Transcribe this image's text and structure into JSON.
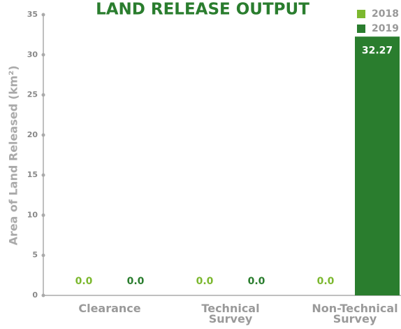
{
  "chart_data": {
    "type": "bar",
    "title": "LAND RELEASE OUTPUT",
    "y_label": "Area of Land Released (km²)",
    "categories": [
      "Clearance",
      "Technical Survey",
      "Non-Technical Survey"
    ],
    "series": [
      {
        "name": "2018",
        "color": "#7cb82f",
        "values": [
          0,
          0,
          0
        ],
        "value_labels": [
          "0.0",
          "0.0",
          "0.0"
        ]
      },
      {
        "name": "2019",
        "color": "#2a7d2e",
        "values": [
          0,
          0,
          32.27
        ],
        "value_labels": [
          "0.0",
          "0.0",
          "32.27"
        ]
      }
    ],
    "ylim": [
      0,
      35
    ],
    "yticks": [
      0,
      5,
      10,
      15,
      20,
      25,
      30,
      35
    ],
    "legend": "upper right"
  }
}
